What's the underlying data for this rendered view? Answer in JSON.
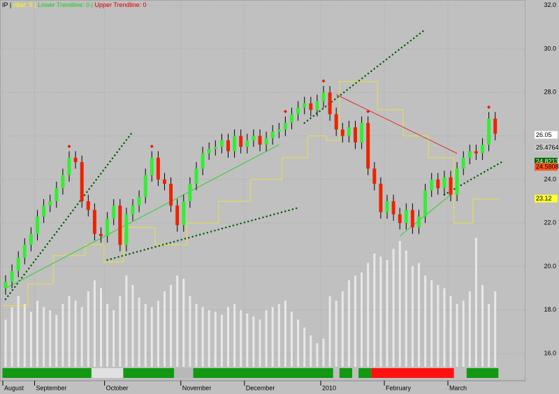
{
  "chart_data": {
    "type": "candlestick",
    "title_parts": [
      "IP |",
      "nbar: 5 |",
      "Lower Trendline: 0 |",
      "Upper Trendline: 0"
    ],
    "title_colors": [
      "#000000",
      "#ffff00",
      "#22cc22",
      "#dd0000"
    ],
    "open": [
      19.0,
      19.3,
      19.8,
      20.4,
      21.0,
      21.5,
      22.3,
      22.8,
      23.0,
      23.6,
      24.2,
      25.0,
      24.8,
      23.0,
      22.6,
      21.5,
      21.4,
      22.2,
      22.8,
      21.0,
      22.4,
      22.8,
      23.2,
      24.2,
      25.0,
      24.0,
      23.8,
      22.8,
      21.9,
      23.0,
      23.8,
      24.5,
      25.2,
      25.4,
      25.5,
      25.8,
      25.3,
      26.0,
      25.5,
      25.8,
      26.0,
      25.6,
      25.9,
      26.2,
      26.3,
      26.6,
      27.0,
      27.3,
      27.5,
      27.2,
      27.6,
      28.0,
      27.0,
      26.3,
      26.0,
      26.4,
      25.7,
      26.6,
      24.5,
      23.8,
      22.5,
      23.0,
      22.4,
      22.0,
      22.6,
      21.8,
      22.3,
      23.5,
      24.0,
      23.6,
      24.1,
      23.3,
      24.5,
      25.0,
      25.3,
      25.2,
      25.6,
      26.8
    ],
    "high": [
      19.6,
      20.1,
      20.7,
      21.3,
      21.8,
      22.6,
      23.1,
      23.3,
      23.9,
      24.5,
      25.3,
      25.3,
      25.1,
      23.3,
      22.9,
      21.8,
      22.5,
      23.1,
      23.1,
      22.7,
      23.1,
      23.5,
      24.5,
      25.3,
      25.3,
      24.3,
      24.1,
      23.1,
      23.3,
      24.1,
      24.8,
      25.5,
      25.7,
      25.8,
      26.1,
      26.1,
      26.3,
      26.3,
      26.1,
      26.3,
      26.3,
      26.2,
      26.5,
      26.6,
      26.9,
      27.3,
      27.6,
      27.8,
      27.8,
      27.9,
      28.3,
      28.3,
      27.3,
      26.6,
      26.7,
      26.7,
      26.9,
      26.9,
      24.8,
      24.1,
      23.3,
      23.3,
      22.7,
      22.9,
      22.9,
      22.6,
      23.8,
      24.3,
      24.3,
      24.4,
      24.4,
      24.8,
      25.3,
      25.6,
      25.6,
      25.9,
      27.1,
      27.1
    ],
    "low": [
      18.7,
      19.0,
      19.5,
      20.1,
      20.7,
      21.2,
      22.0,
      22.5,
      22.7,
      23.3,
      23.9,
      24.5,
      22.7,
      22.3,
      21.2,
      21.1,
      21.1,
      21.9,
      20.7,
      20.7,
      22.1,
      22.5,
      22.9,
      23.9,
      23.7,
      23.5,
      22.5,
      21.6,
      21.6,
      22.7,
      23.5,
      24.2,
      24.9,
      25.1,
      25.2,
      25.0,
      25.0,
      25.2,
      25.2,
      25.5,
      25.3,
      25.3,
      25.6,
      25.9,
      26.0,
      26.3,
      26.7,
      27.0,
      26.9,
      26.9,
      27.3,
      26.7,
      26.0,
      25.7,
      25.7,
      25.4,
      25.4,
      24.2,
      23.5,
      22.2,
      22.2,
      22.1,
      21.7,
      21.7,
      21.5,
      21.5,
      22.0,
      23.2,
      23.3,
      23.3,
      23.0,
      23.0,
      24.2,
      24.7,
      24.9,
      24.9,
      25.3,
      25.8
    ],
    "close": [
      19.3,
      19.8,
      20.4,
      21.0,
      21.5,
      22.3,
      22.8,
      23.0,
      23.6,
      24.2,
      25.0,
      24.8,
      23.0,
      22.6,
      21.5,
      21.4,
      22.2,
      22.8,
      21.0,
      22.4,
      22.8,
      23.2,
      24.2,
      25.0,
      24.0,
      23.8,
      22.8,
      21.9,
      23.0,
      23.8,
      24.5,
      25.2,
      25.4,
      25.5,
      25.8,
      25.3,
      26.0,
      25.5,
      25.8,
      26.0,
      25.6,
      25.9,
      26.2,
      26.3,
      26.6,
      27.0,
      27.3,
      27.5,
      27.2,
      27.6,
      28.0,
      27.0,
      26.3,
      26.0,
      26.4,
      25.7,
      26.6,
      24.5,
      23.8,
      22.5,
      23.0,
      22.4,
      22.0,
      22.6,
      21.8,
      22.3,
      23.5,
      24.0,
      23.6,
      24.1,
      23.3,
      24.5,
      25.0,
      25.3,
      25.2,
      25.6,
      26.8,
      26.1
    ],
    "up_color": "#33ee33",
    "down_color": "#ee2200",
    "volume": [
      30,
      38,
      45,
      40,
      35,
      42,
      38,
      36,
      33,
      40,
      45,
      42,
      38,
      48,
      55,
      50,
      40,
      36,
      45,
      58,
      52,
      44,
      40,
      38,
      42,
      48,
      52,
      58,
      56,
      45,
      40,
      38,
      36,
      35,
      33,
      38,
      40,
      36,
      34,
      32,
      30,
      36,
      38,
      40,
      42,
      35,
      30,
      25,
      20,
      15,
      18,
      45,
      42,
      48,
      55,
      58,
      60,
      66,
      72,
      70,
      68,
      75,
      80,
      74,
      64,
      66,
      58,
      55,
      52,
      50,
      45,
      40,
      42,
      48,
      82,
      52,
      40,
      48
    ],
    "volume_lim": [
      0,
      100
    ],
    "volume_color": "#e8e8e8",
    "stop_line": [
      18.2,
      18.2,
      18.2,
      18.2,
      19.2,
      19.2,
      19.2,
      19.2,
      20.5,
      20.5,
      20.5,
      20.5,
      20.5,
      21.0,
      21.0,
      21.0,
      20.2,
      20.2,
      20.2,
      21.8,
      21.8,
      21.8,
      21.8,
      21.8,
      21.0,
      21.0,
      21.0,
      21.0,
      21.0,
      22.0,
      22.0,
      22.0,
      22.0,
      22.0,
      23.0,
      23.0,
      23.0,
      23.0,
      23.0,
      24.0,
      24.0,
      24.0,
      24.0,
      24.0,
      25.0,
      25.0,
      25.0,
      25.0,
      26.0,
      26.0,
      26.0,
      25.8,
      25.8,
      28.5,
      28.5,
      28.5,
      28.5,
      28.5,
      28.5,
      27.2,
      27.2,
      27.2,
      27.2,
      26.0,
      26.0,
      26.0,
      26.0,
      25.0,
      25.0,
      25.0,
      25.0,
      22.0,
      22.0,
      22.0,
      23.1,
      23.1,
      23.1,
      23.1
    ],
    "stop_color": "#e8e04a",
    "overlays": [
      {
        "color": "#005a00",
        "dotted": true,
        "points": [
          [
            0,
            18.5
          ],
          [
            20,
            26.2
          ]
        ]
      },
      {
        "color": "#005a00",
        "dotted": true,
        "points": [
          [
            16,
            20.3
          ],
          [
            46,
            22.7
          ]
        ]
      },
      {
        "color": "#005a00",
        "dotted": true,
        "points": [
          [
            47,
            26.6
          ],
          [
            66,
            30.9
          ]
        ]
      },
      {
        "color": "#005a00",
        "dotted": true,
        "points": [
          [
            69,
            23.3
          ],
          [
            78,
            24.8
          ]
        ]
      },
      {
        "color": "#33cc33",
        "dotted": false,
        "points": [
          [
            0,
            19.0
          ],
          [
            43,
            25.6
          ]
        ]
      },
      {
        "color": "#33cc33",
        "dotted": false,
        "points": [
          [
            62,
            21.4
          ],
          [
            70,
            23.3
          ]
        ]
      },
      {
        "color": "#dd2222",
        "dotted": false,
        "points": [
          [
            52,
            27.9
          ],
          [
            71,
            25.2
          ]
        ]
      }
    ],
    "peak_markers": [
      10,
      23,
      44,
      50,
      57,
      76
    ],
    "peak_color": "#ee1111",
    "ribbon": [
      {
        "start": 0,
        "end": 13,
        "color": "#119911"
      },
      {
        "start": 14,
        "end": 18,
        "color": "#e0e0e0"
      },
      {
        "start": 19,
        "end": 26,
        "color": "#119911"
      },
      {
        "start": 27,
        "end": 29,
        "color": "#b8b8b8"
      },
      {
        "start": 30,
        "end": 51,
        "color": "#119911"
      },
      {
        "start": 53,
        "end": 54,
        "color": "#119911"
      },
      {
        "start": 56,
        "end": 57,
        "color": "#119911"
      },
      {
        "start": 58,
        "end": 70,
        "color": "#ff1111"
      },
      {
        "start": 73,
        "end": 77,
        "color": "#119911"
      }
    ],
    "ylim": [
      14.75,
      32.25
    ],
    "yticks": [
      {
        "value": 16,
        "label": "16.0"
      },
      {
        "value": 18,
        "label": "18.0"
      },
      {
        "value": 20,
        "label": "20.0"
      },
      {
        "value": 22,
        "label": "22.0"
      },
      {
        "value": 24,
        "label": "24.0"
      },
      {
        "value": 26,
        "label": "26.0"
      },
      {
        "value": 28,
        "label": "28.0"
      },
      {
        "value": 30,
        "label": "30.0"
      },
      {
        "value": 32,
        "label": "32.0"
      }
    ],
    "xticks": [
      {
        "value": 0,
        "label": "August"
      },
      {
        "value": 5,
        "label": "September"
      },
      {
        "value": 16,
        "label": "October"
      },
      {
        "value": 28,
        "label": "November"
      },
      {
        "value": 38,
        "label": "December"
      },
      {
        "value": 50,
        "label": "2010"
      },
      {
        "value": 60,
        "label": "February"
      },
      {
        "value": 70,
        "label": "March"
      }
    ],
    "grid": true,
    "price_tags": [
      {
        "value": 26.05,
        "label": "26.05",
        "bg": "#ffffff",
        "fg": "#000000"
      },
      {
        "value": 25.4764,
        "label": "25.4764",
        "bg": "#c8c8c8",
        "fg": "#000000"
      },
      {
        "value": 24.8213,
        "label": "24.8213",
        "bg": "#006600",
        "fg": "#ffffff"
      },
      {
        "value": 24.5808,
        "label": "24.5808",
        "bg": "#ff5522",
        "fg": "#000000"
      },
      {
        "value": 23.12,
        "label": "23.12",
        "bg": "#ffff33",
        "fg": "#000000"
      }
    ]
  }
}
